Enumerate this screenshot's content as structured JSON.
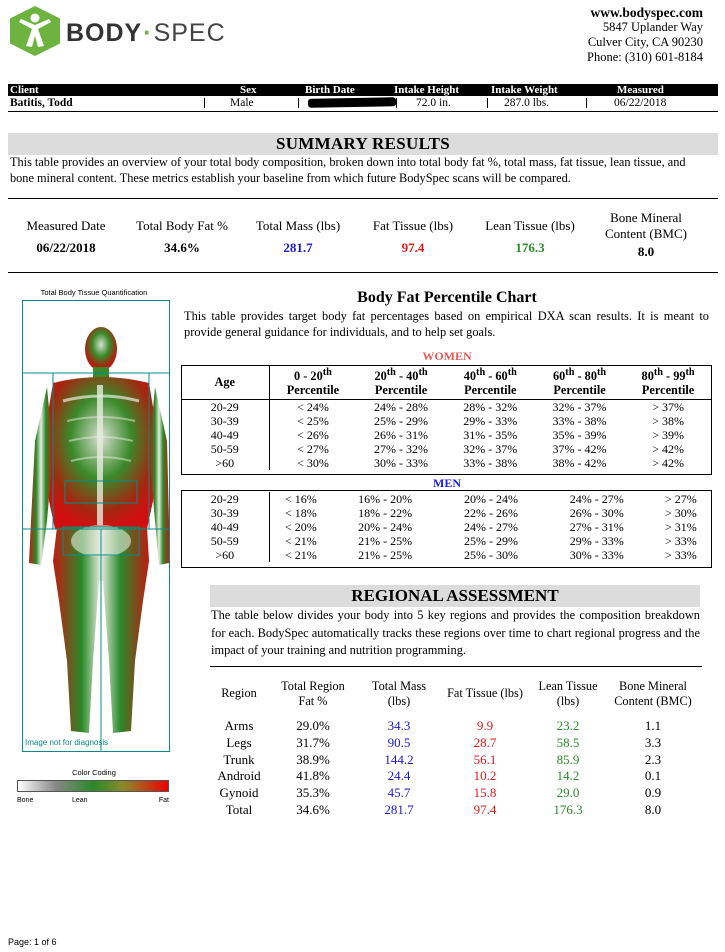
{
  "header": {
    "logo_bold": "BODY",
    "logo_light": "SPEC",
    "website": "www.bodyspec.com",
    "address1": "5847 Uplander Way",
    "address2": "Culver City, CA 90230",
    "phone": "Phone: (310) 601-8184"
  },
  "client": {
    "labels": [
      "Client",
      "Sex",
      "Birth Date",
      "Intake Height",
      "Intake Weight",
      "Measured"
    ],
    "name": "Batitis, Todd",
    "sex": "Male",
    "height": "72.0 in.",
    "weight": "287.0 lbs.",
    "measured": "06/22/2018"
  },
  "summary": {
    "title": "SUMMARY RESULTS",
    "desc": "This table provides an overview of your total body composition, broken down into total body fat %, total mass, fat tissue, lean tissue, and bone mineral content.  These metrics establish your baseline from which future BodySpec scans will be compared.",
    "metrics": [
      {
        "label": "Measured Date",
        "value": "06/22/2018"
      },
      {
        "label": "Total Body Fat %",
        "value": "34.6%"
      },
      {
        "label": "Total Mass (lbs)",
        "value": "281.7"
      },
      {
        "label": "Fat Tissue (lbs)",
        "value": "97.4"
      },
      {
        "label": "Lean Tissue (lbs)",
        "value": "176.3"
      },
      {
        "label": "Bone Mineral Content (BMC)",
        "value": "8.0"
      }
    ],
    "colors": {
      "mass": "#1a1acc",
      "fat": "#e01818",
      "lean": "#2a8a2a"
    }
  },
  "image": {
    "caption": "Total Body Tissue Quantification",
    "watermark": "Image not for diagnosis",
    "color_caption": "Color Coding",
    "color_labels": [
      "Bone",
      "Lean",
      "Fat"
    ]
  },
  "percentile": {
    "title": "Body Fat Percentile Chart",
    "desc": "This table provides target body fat percentages based on empirical DXA scan results.  It is meant to provide general guidance for individuals, and to help set goals.",
    "age_header": "Age",
    "columns": [
      {
        "a": "0 - 20",
        "b": "th",
        "c": "Percentile"
      },
      {
        "a": "20",
        "b": "th",
        "m": " - 40",
        "b2": "th",
        "c": "Percentile"
      },
      {
        "a": "40",
        "b": "th",
        "m": " - 60",
        "b2": "th",
        "c": "Percentile"
      },
      {
        "a": "60",
        "b": "th",
        "m": " - 80",
        "b2": "th",
        "c": "Percentile"
      },
      {
        "a": "80",
        "b": "th",
        "m": " - 99",
        "b2": "th",
        "c": "Percentile"
      }
    ],
    "women_label": "WOMEN",
    "women": [
      [
        "20-29",
        "< 24%",
        "24% - 28%",
        "28% - 32%",
        "32% - 37%",
        "> 37%"
      ],
      [
        "30-39",
        "< 25%",
        "25% - 29%",
        "29% - 33%",
        "33% - 38%",
        "> 38%"
      ],
      [
        "40-49",
        "< 26%",
        "26% - 31%",
        "31% - 35%",
        "35% - 39%",
        "> 39%"
      ],
      [
        "50-59",
        "< 27%",
        "27% - 32%",
        "32% - 37%",
        "37% - 42%",
        "> 42%"
      ],
      [
        ">60",
        "< 30%",
        "30% - 33%",
        "33% - 38%",
        "38% - 42%",
        "> 42%"
      ]
    ],
    "men_label": "MEN",
    "men": [
      [
        "20-29",
        "< 16%",
        "16% - 20%",
        "20% - 24%",
        "24% - 27%",
        "> 27%"
      ],
      [
        "30-39",
        "< 18%",
        "18% - 22%",
        "22% - 26%",
        "26% - 30%",
        "> 30%"
      ],
      [
        "40-49",
        "< 20%",
        "20% - 24%",
        "24% - 27%",
        "27% - 31%",
        "> 31%"
      ],
      [
        "50-59",
        "< 21%",
        "21% - 25%",
        "25% - 29%",
        "29% - 33%",
        "> 33%"
      ],
      [
        ">60",
        "< 21%",
        "21% - 25%",
        "25% - 30%",
        "30% - 33%",
        "> 33%"
      ]
    ]
  },
  "regional": {
    "title": "REGIONAL ASSESSMENT",
    "desc": "The table below divides your body into 5 key regions and provides the composition breakdown for each.  BodySpec automatically tracks these regions over time to chart regional progress and the impact of your training and nutrition programming.",
    "headers": [
      "Region",
      "Total Region Fat %",
      "Total Mass (lbs)",
      "Fat Tissue (lbs)",
      "Lean Tissue (lbs)",
      "Bone Mineral Content (BMC)"
    ],
    "rows": [
      [
        "Arms",
        "29.0%",
        "34.3",
        "9.9",
        "23.2",
        "1.1"
      ],
      [
        "Legs",
        "31.7%",
        "90.5",
        "28.7",
        "58.5",
        "3.3"
      ],
      [
        "Trunk",
        "38.9%",
        "144.2",
        "56.1",
        "85.9",
        "2.3"
      ],
      [
        "Android",
        "41.8%",
        "24.4",
        "10.2",
        "14.2",
        "0.1"
      ],
      [
        "Gynoid",
        "35.3%",
        "45.7",
        "15.8",
        "29.0",
        "0.9"
      ],
      [
        "Total",
        "34.6%",
        "281.7",
        "97.4",
        "176.3",
        "8.0"
      ]
    ]
  },
  "footer": {
    "page": "Page: 1 of 6"
  }
}
